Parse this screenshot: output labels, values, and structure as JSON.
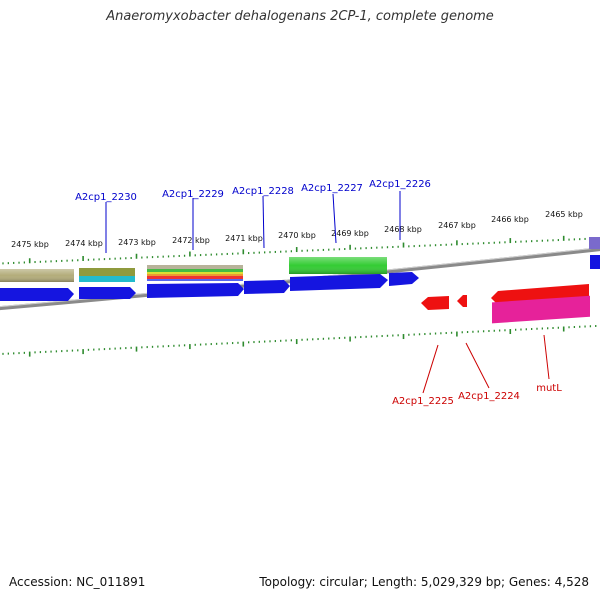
{
  "title": "Anaeromyxobacter dehalogenans 2CP-1, complete genome",
  "footer": {
    "accession": "Accession: NC_011891",
    "summary": "Topology: circular; Length: 5,029,329 bp; Genes: 4,528"
  },
  "colors": {
    "backbone": "#8a8a8a",
    "tick": "#2e8b2e",
    "forward_label": "#0000cc",
    "reverse_label": "#cc0000",
    "cds_blue": "#1515e0",
    "cds_red": "#ee1111",
    "cds_green": "#33cc33",
    "cds_magenta": "#e6229a",
    "cds_olive": "#b3ac7a",
    "cds_cyan": "#22bbcc",
    "cds_purple": "#7a6acc"
  },
  "scale": {
    "unit": "kbp",
    "labels": [
      "2475 kbp",
      "2474 kbp",
      "2473 kbp",
      "2472 kbp",
      "2471 kbp",
      "2470 kbp",
      "2469 kbp",
      "2468 kbp",
      "2467 kbp",
      "2466 kbp",
      "2465 kbp"
    ]
  },
  "gene_labels": {
    "forward": [
      "A2cp1_2230",
      "A2cp1_2229",
      "A2cp1_2228",
      "A2cp1_2227",
      "A2cp1_2226"
    ],
    "reverse": [
      "A2cp1_2225",
      "A2cp1_2224",
      "mutL"
    ]
  }
}
